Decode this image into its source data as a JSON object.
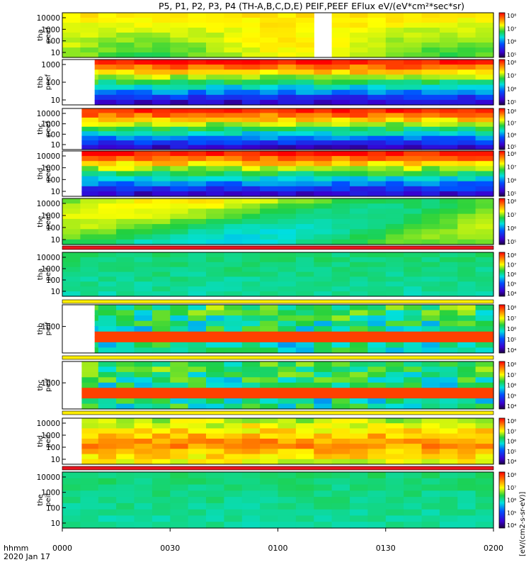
{
  "title": "P5, P1, P2, P3, P4 (TH-A,B,C,D,E) PEIF,PEEF EFlux eV/(eV*cm²*sec*sr)",
  "x_axis": {
    "prefix_line1": "hhmm",
    "prefix_line2": "2020 Jan 17",
    "tick_labels": [
      "0000",
      "0030",
      "0100",
      "0130",
      "0200"
    ]
  },
  "colorbar_units": "[eV/(cm2-s-sr-eV)]",
  "colors": {
    "background": "#ffffff",
    "band_red": "#e8141e",
    "band_yellow": "#ffee00",
    "frame": "#000000"
  },
  "chart_data": {
    "type": "heatmap",
    "x_range_hhmm": [
      "0000",
      "0200"
    ],
    "panels": [
      {
        "label1": "tha",
        "label2": "peef",
        "yticks": [
          "10",
          "100",
          "1000",
          "10000"
        ],
        "colorbar_ticks": [
          "10⁵",
          "10⁶",
          "10⁷",
          "10⁸"
        ],
        "pattern": "tha_peef",
        "data_start": 0.0,
        "gap": [
          0.55,
          0.62
        ],
        "band_after": ""
      },
      {
        "label1": "thb",
        "label2": "peef",
        "yticks": [
          "10",
          "100",
          "1000"
        ],
        "colorbar_ticks": [
          "10⁵",
          "10⁶",
          "10⁷",
          "10⁸"
        ],
        "pattern": "cold_top",
        "data_start": 0.075,
        "gap": [],
        "band_after": ""
      },
      {
        "label1": "thc",
        "label2": "peef",
        "yticks": [
          "10",
          "100",
          "1000",
          "10000"
        ],
        "colorbar_ticks": [
          "10⁵",
          "10⁶",
          "10⁷",
          "10⁸"
        ],
        "pattern": "cold_top",
        "data_start": 0.045,
        "gap": [],
        "band_after": ""
      },
      {
        "label1": "thd",
        "label2": "peef",
        "yticks": [
          "10",
          "100",
          "1000",
          "10000"
        ],
        "colorbar_ticks": [
          "10⁵",
          "10⁶",
          "10⁷",
          "10⁸"
        ],
        "pattern": "cold_top",
        "data_start": 0.045,
        "gap": [],
        "band_after": ""
      },
      {
        "label1": "the",
        "label2": "peef",
        "yticks": [
          "10",
          "100",
          "1000",
          "10000"
        ],
        "colorbar_ticks": [
          "10⁵",
          "10⁶",
          "10⁷",
          "10⁸"
        ],
        "pattern": "the_peef",
        "data_start": 0.0,
        "gap": [],
        "band_after": "red"
      },
      {
        "label1": "tha",
        "label2": "peif",
        "yticks": [
          "10",
          "100",
          "1000",
          "10000"
        ],
        "colorbar_ticks": [
          "10⁴",
          "10⁵",
          "10⁶",
          "10⁷",
          "10⁸"
        ],
        "pattern": "uniform_green",
        "data_start": 0.0,
        "gap": [],
        "band_after": "yellow"
      },
      {
        "label1": "thb",
        "label2": "peif",
        "yticks": [
          "1000"
        ],
        "colorbar_ticks": [
          "10⁴",
          "10⁵",
          "10⁶",
          "10⁷",
          "10⁸"
        ],
        "pattern": "peif_band",
        "data_start": 0.075,
        "gap": [],
        "band_after": "yellow"
      },
      {
        "label1": "thc",
        "label2": "peif",
        "yticks": [
          "1000"
        ],
        "colorbar_ticks": [
          "10⁴",
          "10⁵",
          "10⁶",
          "10⁷",
          "10⁸"
        ],
        "pattern": "peif_band",
        "data_start": 0.045,
        "gap": [],
        "band_after": "yellow"
      },
      {
        "label1": "thd",
        "label2": "peif",
        "yticks": [
          "10",
          "100",
          "1000",
          "10000"
        ],
        "colorbar_ticks": [
          "10⁴",
          "10⁵",
          "10⁶",
          "10⁷",
          "10⁸"
        ],
        "pattern": "warm",
        "data_start": 0.045,
        "gap": [],
        "band_after": "red"
      },
      {
        "label1": "the",
        "label2": "peif",
        "yticks": [
          "10",
          "100",
          "1000",
          "10000"
        ],
        "colorbar_ticks": [
          "10⁴",
          "10⁵",
          "10⁶",
          "10⁷",
          "10⁸"
        ],
        "pattern": "uniform_green",
        "data_start": 0.0,
        "gap": [],
        "band_after": ""
      }
    ]
  }
}
